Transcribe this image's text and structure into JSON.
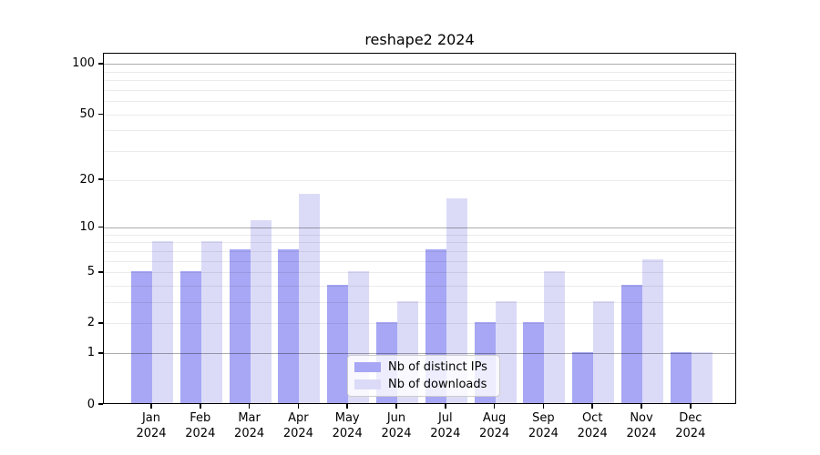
{
  "figure": {
    "title": "reshape2 2024"
  },
  "chart_data": {
    "type": "bar",
    "title": "reshape2 2024",
    "categories": [
      "Jan",
      "Feb",
      "Mar",
      "Apr",
      "May",
      "Jun",
      "Jul",
      "Aug",
      "Sep",
      "Oct",
      "Nov",
      "Dec"
    ],
    "x_tick_second_line": "2024",
    "series": [
      {
        "name": "Nb of distinct IPs",
        "color": "#a7a7f5",
        "values": [
          5,
          5,
          7,
          7,
          4,
          2,
          7,
          2,
          2,
          1,
          4,
          1
        ]
      },
      {
        "name": "Nb of downloads",
        "color": "#dbdbf8",
        "values": [
          8,
          8,
          11,
          16,
          5,
          3,
          15,
          3,
          5,
          3,
          6,
          1
        ]
      }
    ],
    "y_scale": "log1p",
    "ylim": [
      0,
      116
    ],
    "y_ticks": [
      0,
      1,
      2,
      5,
      10,
      20,
      50,
      100
    ],
    "grid_major": [
      1,
      10,
      100
    ],
    "grid_minor": [
      2,
      3,
      4,
      5,
      6,
      7,
      8,
      9,
      20,
      30,
      40,
      50,
      60,
      70,
      80,
      90
    ],
    "grid": "on",
    "legend_position": "lower-center"
  }
}
